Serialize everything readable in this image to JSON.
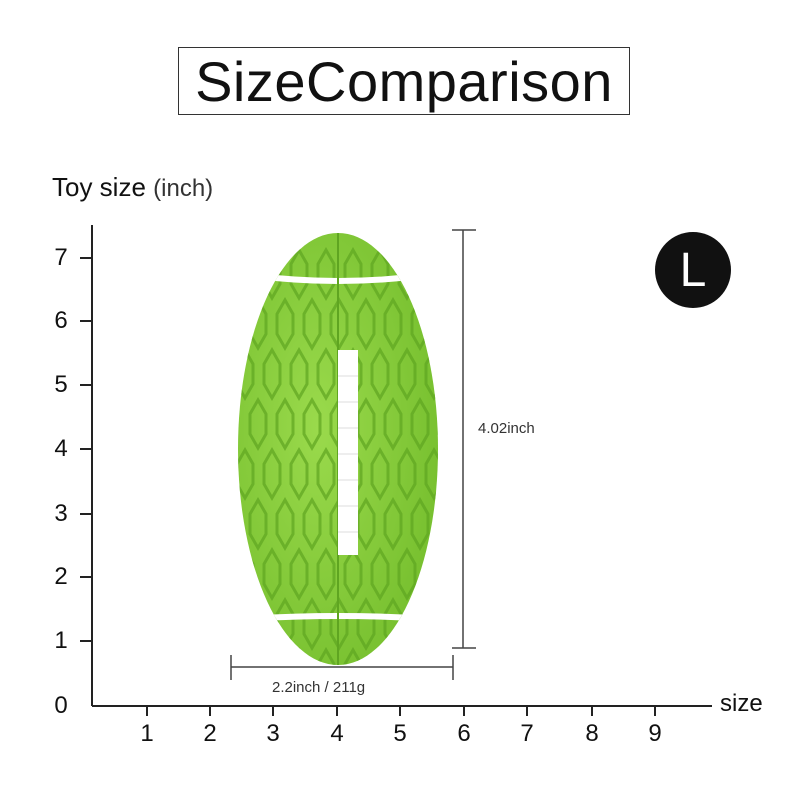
{
  "title": "SizeComparison",
  "y_axis": {
    "label": "Toy size",
    "unit": "(inch)",
    "ticks": [
      "0",
      "1",
      "2",
      "3",
      "4",
      "5",
      "6",
      "7"
    ]
  },
  "x_axis": {
    "label": "size",
    "ticks": [
      "1",
      "2",
      "3",
      "4",
      "5",
      "6",
      "7",
      "8",
      "9"
    ]
  },
  "size_badge": "L",
  "height_label": "4.02inch",
  "width_label": "2.2inch / 211g",
  "colors": {
    "ball": "#8cd13c",
    "ball_dark": "#6fb52a",
    "stripe": "#ffffff",
    "axis": "#222222"
  },
  "product_image": "green-rubber-football-toy"
}
